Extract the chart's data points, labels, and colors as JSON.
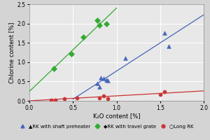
{
  "xlabel": "K₂O content [%]",
  "ylabel": "Chlorine content [%]",
  "xlim": [
    0,
    2
  ],
  "ylim": [
    0,
    2.5
  ],
  "xticks": [
    0,
    0.5,
    1,
    1.5,
    2
  ],
  "yticks": [
    0,
    0.5,
    1.0,
    1.5,
    2.0,
    2.5
  ],
  "bg_color": "#d4d4d4",
  "plot_bg_color": "#e8e8e8",
  "series": [
    {
      "name": "RK with shaft preheater",
      "color": "#4466bb",
      "marker": "^",
      "marker_size": 18,
      "x": [
        0.78,
        0.8,
        0.82,
        0.85,
        0.88,
        0.9,
        1.1,
        1.55,
        1.6
      ],
      "y": [
        0.45,
        0.37,
        0.6,
        0.58,
        0.55,
        0.52,
        1.1,
        1.75,
        1.42
      ],
      "trendline": true,
      "trend_color": "#4466bb",
      "trend_x": [
        0.5,
        2.0
      ]
    },
    {
      "name": "RK with travel grate",
      "color": "#33aa33",
      "marker": "o",
      "marker_size": 18,
      "x": [
        0.28,
        0.48,
        0.62,
        0.78,
        0.8,
        0.88
      ],
      "y": [
        0.83,
        1.22,
        1.65,
        2.09,
        1.95,
        2.0
      ],
      "trendline": true,
      "trend_color": "#33aa33",
      "trend_x": [
        0.0,
        1.0
      ]
    },
    {
      "name": "Long RK",
      "color": "#cc3333",
      "marker": "o",
      "marker_size": 14,
      "x": [
        0.25,
        0.3,
        0.4,
        0.55,
        0.8,
        0.85,
        0.9,
        1.5,
        1.55
      ],
      "y": [
        0.02,
        0.02,
        0.05,
        0.08,
        0.08,
        0.12,
        0.05,
        0.17,
        0.23
      ],
      "trendline": true,
      "trend_color": "#cc3333",
      "trend_x": [
        0.0,
        2.0
      ]
    }
  ],
  "legend_labels": [
    "▲RK with shaft preheater",
    "◆RK with travel grate",
    "○Long RK"
  ],
  "legend_colors": [
    "#4466bb",
    "#33aa33",
    "#cc3333"
  ],
  "legend_markers": [
    "^",
    "D",
    "o"
  ],
  "legend_fontsize": 5,
  "axis_label_fontsize": 6,
  "tick_fontsize": 5.5
}
